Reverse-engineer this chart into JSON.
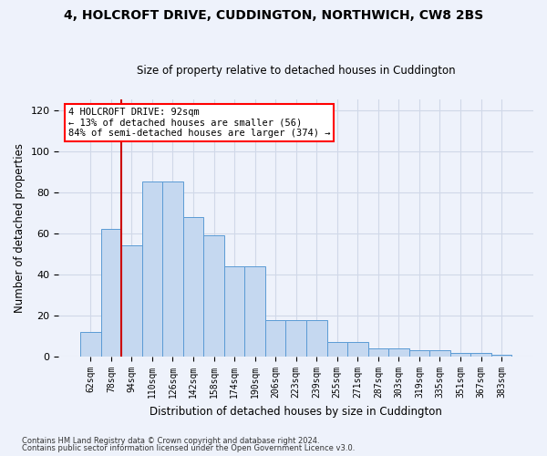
{
  "title": "4, HOLCROFT DRIVE, CUDDINGTON, NORTHWICH, CW8 2BS",
  "subtitle": "Size of property relative to detached houses in Cuddington",
  "xlabel": "Distribution of detached houses by size in Cuddington",
  "ylabel": "Number of detached properties",
  "bar_values": [
    12,
    62,
    54,
    85,
    85,
    68,
    59,
    44,
    44,
    18,
    18,
    18,
    7,
    7,
    4,
    4,
    3,
    3,
    2,
    2,
    1
  ],
  "bin_labels": [
    "62sqm",
    "78sqm",
    "94sqm",
    "110sqm",
    "126sqm",
    "142sqm",
    "158sqm",
    "174sqm",
    "190sqm",
    "206sqm",
    "223sqm",
    "239sqm",
    "255sqm",
    "271sqm",
    "287sqm",
    "303sqm",
    "319sqm",
    "335sqm",
    "351sqm",
    "367sqm",
    "383sqm"
  ],
  "bar_color": "#c5d8f0",
  "bar_edge_color": "#5b9bd5",
  "grid_color": "#d0d8e8",
  "vline_color": "#cc0000",
  "vline_x": 1.5,
  "annotation_text": "4 HOLCROFT DRIVE: 92sqm\n← 13% of detached houses are smaller (56)\n84% of semi-detached houses are larger (374) →",
  "ylim": [
    0,
    125
  ],
  "yticks": [
    0,
    20,
    40,
    60,
    80,
    100,
    120
  ],
  "footer1": "Contains HM Land Registry data © Crown copyright and database right 2024.",
  "footer2": "Contains public sector information licensed under the Open Government Licence v3.0.",
  "bg_color": "#eef2fb"
}
